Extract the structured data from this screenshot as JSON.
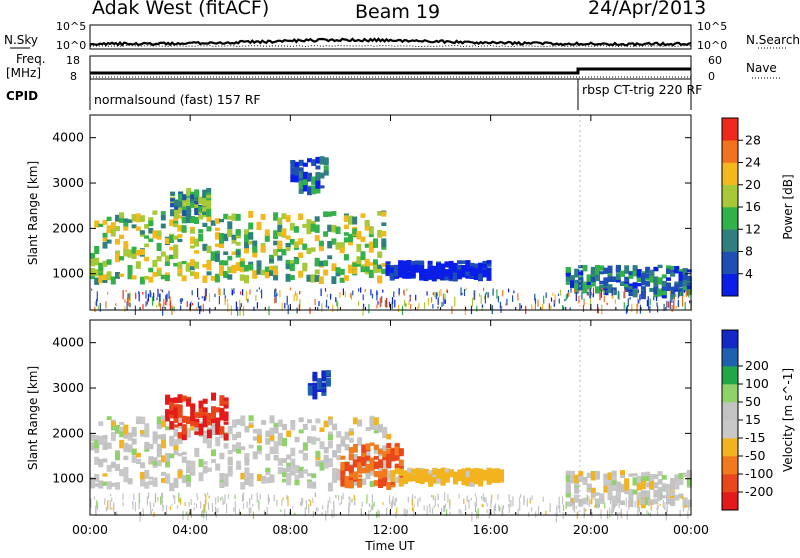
{
  "header": {
    "station": "Adak West (fitACF)",
    "beam": "Beam 19",
    "date": "24/Apr/2013"
  },
  "side_labels": {
    "nsky": "N.Sky",
    "nsearch": "N.Search",
    "freq": "Freq.",
    "freq_unit": "[MHz]",
    "nave": "Nave",
    "cpid": "CPID"
  },
  "noise_panel": {
    "left_ticks": [
      "10^5",
      "10^0"
    ],
    "right_ticks": [
      "10^5",
      "10^0"
    ]
  },
  "freq_panel": {
    "left_ticks": [
      "18",
      "8"
    ],
    "right_ticks": [
      "60",
      "0"
    ]
  },
  "cpid_panel": {
    "segments": [
      "normalsound (fast) 157 RF",
      "rbsp CT-trig 220 RF"
    ]
  },
  "colors": {
    "power_scale": [
      "#0a1ee8",
      "#1f4fb2",
      "#2f7f7f",
      "#32b04a",
      "#a8c83a",
      "#f2b81e",
      "#f2731f",
      "#ef2a1c"
    ],
    "velocity_scale": [
      "#1428c8",
      "#2060b0",
      "#23a54a",
      "#8fd26a",
      "#c3c3c3",
      "#c8c8c8",
      "#f2b31f",
      "#f07a1d",
      "#e8471c",
      "#e41a1a"
    ]
  },
  "chart_data": [
    {
      "type": "heatmap",
      "title": "",
      "xlabel": "",
      "ylabel": "Slant Range [km]",
      "x_ticks": [
        "00:00",
        "04:00",
        "08:00",
        "12:00",
        "16:00",
        "20:00",
        "00:00"
      ],
      "y_ticks": [
        "1000",
        "2000",
        "3000",
        "4000"
      ],
      "ylim": [
        200,
        4500
      ],
      "colorbar": {
        "label": "Power [dB]",
        "ticks": [
          "4",
          "8",
          "12",
          "16",
          "20",
          "24",
          "28"
        ],
        "range": [
          0,
          32
        ]
      },
      "features": [
        {
          "x_start": 0,
          "x_end": 11.8,
          "y_range": [
            900,
            2400
          ],
          "peak_power_db": 24
        },
        {
          "x_start": 3.2,
          "x_end": 4.8,
          "y_range": [
            2400,
            2900
          ],
          "peak_power_db": 20
        },
        {
          "x_start": 8.0,
          "x_end": 9.5,
          "y_range": [
            2900,
            3600
          ],
          "peak_power_db": 14
        },
        {
          "x_start": 11.8,
          "x_end": 16.0,
          "y_range": [
            1000,
            1300
          ],
          "peak_power_db": 8
        },
        {
          "x_start": 19.0,
          "x_end": 24.0,
          "y_range": [
            600,
            1200
          ],
          "peak_power_db": 16
        }
      ]
    },
    {
      "type": "heatmap",
      "title": "",
      "xlabel": "Time UT",
      "ylabel": "Slant Range [km]",
      "x_ticks": [
        "00:00",
        "04:00",
        "08:00",
        "12:00",
        "16:00",
        "20:00",
        "00:00"
      ],
      "y_ticks": [
        "1000",
        "2000",
        "3000",
        "4000"
      ],
      "ylim": [
        200,
        4500
      ],
      "colorbar": {
        "label": "Velocity [m s^-1]",
        "ticks": [
          "200",
          "100",
          "50",
          "15",
          "-15",
          "-50",
          "-100",
          "-200"
        ],
        "range": [
          -250,
          250
        ]
      },
      "features": [
        {
          "x_start": 0,
          "x_end": 12.0,
          "y_range": [
            900,
            2400
          ],
          "velocity_ms": 0
        },
        {
          "x_start": 3.0,
          "x_end": 5.5,
          "y_range": [
            2000,
            2900
          ],
          "velocity_ms": -200
        },
        {
          "x_start": 8.7,
          "x_end": 9.6,
          "y_range": [
            2900,
            3400
          ],
          "velocity_ms": 200
        },
        {
          "x_start": 10.0,
          "x_end": 12.5,
          "y_range": [
            900,
            1800
          ],
          "velocity_ms": -100
        },
        {
          "x_start": 12.0,
          "x_end": 16.5,
          "y_range": [
            1000,
            1250
          ],
          "velocity_ms": -30
        },
        {
          "x_start": 19.0,
          "x_end": 24.0,
          "y_range": [
            500,
            1200
          ],
          "velocity_ms": 0
        }
      ]
    }
  ]
}
